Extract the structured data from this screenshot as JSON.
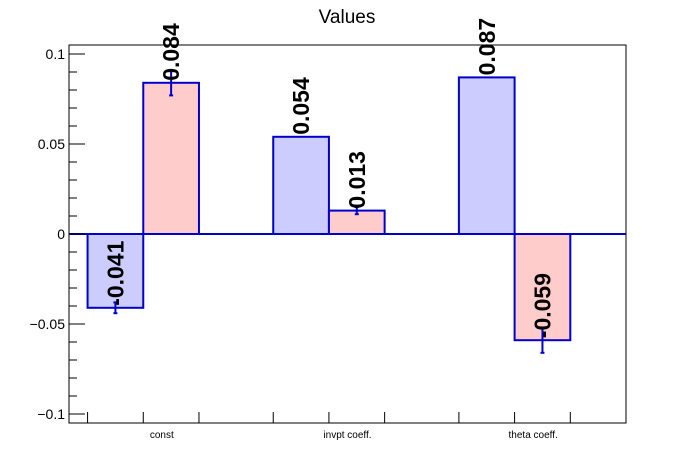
{
  "chart_data": {
    "type": "bar",
    "title": "Values",
    "xlabel": "",
    "ylabel": "",
    "ylim": [
      -0.105,
      0.105
    ],
    "yticks": [
      {
        "value": 0.1,
        "label": "0.1"
      },
      {
        "value": 0.05,
        "label": "0.05"
      },
      {
        "value": 0,
        "label": "0"
      },
      {
        "value": -0.05,
        "label": "−0.05"
      },
      {
        "value": -0.1,
        "label": "−0.1"
      }
    ],
    "categories": [
      "const",
      "invpt coeff.",
      "theta coeff."
    ],
    "series": [
      {
        "color": "#ccccff",
        "values": [
          -0.041,
          0.054,
          0.087
        ],
        "labels": [
          "-0.041",
          "0.054",
          "0.087"
        ],
        "errors": [
          0.003,
          0.0,
          0.0
        ]
      },
      {
        "color": "#ffcccc",
        "values": [
          0.084,
          0.013,
          -0.059
        ],
        "labels": [
          "0.084",
          "0.013",
          "-0.059"
        ],
        "errors": [
          0.007,
          0.002,
          0.007
        ]
      }
    ],
    "grid": false,
    "legend": "none"
  },
  "colors": {
    "outline": "#0000cc",
    "axis": "#000000"
  }
}
